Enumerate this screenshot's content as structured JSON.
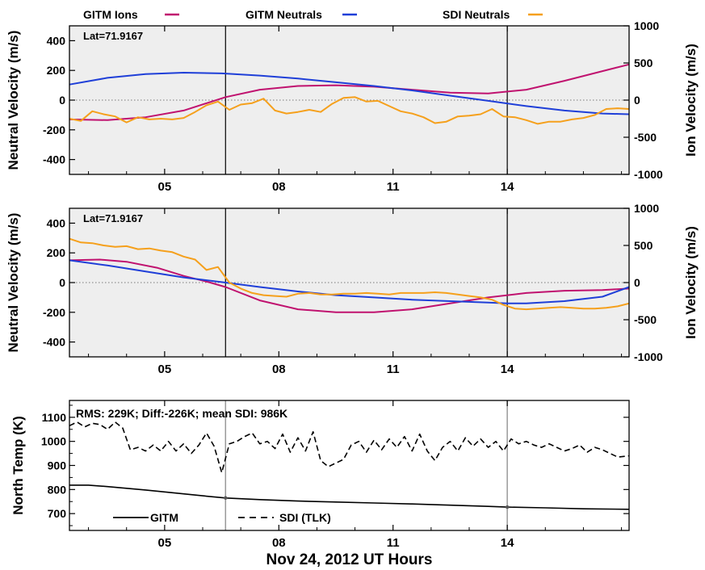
{
  "legend": {
    "ions": "GITM Ions",
    "gitm_neutrals": "GITM Neutrals",
    "sdi_neutrals": "SDI Neutrals"
  },
  "colors": {
    "ions": "#c0126f",
    "gitm_neutrals": "#1f3fd8",
    "sdi_neutrals": "#f5a01c",
    "panel_bg": "#eeeeee"
  },
  "chart_data": [
    {
      "type": "line",
      "panel_label": "Lat=71.9167",
      "ylabel_left": "Neutral Velocity (m/s)",
      "ylabel_right": "Ion Velocity (m/s)",
      "xlim": [
        2.5,
        17.2
      ],
      "ylim_left": [
        -500,
        500
      ],
      "ylim_right": [
        -1000,
        1000
      ],
      "xticks": [
        "05",
        "08",
        "11",
        "14"
      ],
      "xtick_values": [
        5,
        8,
        11,
        14
      ],
      "yticks_left": [
        "400",
        "200",
        "0",
        "-200",
        "-400"
      ],
      "yticks_left_values": [
        400,
        200,
        0,
        -200,
        -400
      ],
      "yticks_right": [
        "1000",
        "500",
        "0",
        "-500",
        "-1000"
      ],
      "yticks_right_values": [
        1000,
        500,
        0,
        -500,
        -1000
      ],
      "vlines": [
        6.6,
        14.0
      ],
      "series": [
        {
          "name": "GITM Ions",
          "axis": "right",
          "color_key": "ions",
          "x": [
            2.5,
            3.5,
            4.5,
            5.5,
            6.6,
            7.5,
            8.5,
            9.5,
            10.5,
            11.5,
            12.5,
            13.5,
            14.5,
            15.5,
            16.5,
            17.2
          ],
          "y": [
            -260,
            -270,
            -230,
            -140,
            40,
            140,
            190,
            200,
            180,
            140,
            100,
            90,
            140,
            260,
            390,
            480
          ]
        },
        {
          "name": "GITM Neutrals",
          "axis": "left",
          "color_key": "gitm_neutrals",
          "x": [
            2.5,
            3.5,
            4.5,
            5.5,
            6.5,
            7.5,
            8.5,
            9.5,
            10.5,
            11.5,
            12.5,
            13.5,
            14.5,
            15.5,
            16.5,
            17.2
          ],
          "y": [
            105,
            150,
            175,
            185,
            180,
            165,
            145,
            120,
            95,
            65,
            30,
            -5,
            -40,
            -70,
            -90,
            -95
          ]
        },
        {
          "name": "SDI Neutrals",
          "axis": "left",
          "color_key": "sdi_neutrals",
          "x": [
            2.5,
            2.8,
            3.1,
            3.4,
            3.7,
            4.0,
            4.3,
            4.6,
            4.9,
            5.2,
            5.5,
            5.8,
            6.1,
            6.4,
            6.7,
            7.0,
            7.3,
            7.6,
            7.9,
            8.2,
            8.5,
            8.8,
            9.1,
            9.4,
            9.7,
            10.0,
            10.3,
            10.6,
            10.9,
            11.2,
            11.5,
            11.8,
            12.1,
            12.4,
            12.7,
            13.0,
            13.3,
            13.6,
            13.9,
            14.2,
            14.5,
            14.8,
            15.1,
            15.4,
            15.7,
            16.0,
            16.3,
            16.6,
            16.9,
            17.2
          ],
          "y": [
            -125,
            -140,
            -75,
            -95,
            -110,
            -150,
            -115,
            -130,
            -125,
            -130,
            -120,
            -80,
            -35,
            -10,
            -65,
            -30,
            -20,
            10,
            -70,
            -90,
            -80,
            -65,
            -80,
            -25,
            15,
            20,
            -10,
            -5,
            -40,
            -75,
            -90,
            -115,
            -155,
            -145,
            -110,
            -105,
            -95,
            -60,
            -110,
            -115,
            -135,
            -160,
            -145,
            -145,
            -130,
            -120,
            -100,
            -60,
            -55,
            -60
          ]
        }
      ]
    },
    {
      "type": "line",
      "panel_label": "Lat=71.9167",
      "ylabel_left": "Neutral Velocity (m/s)",
      "ylabel_right": "Ion Velocity (m/s)",
      "xlim": [
        2.5,
        17.2
      ],
      "ylim_left": [
        -500,
        500
      ],
      "ylim_right": [
        -1000,
        1000
      ],
      "xticks": [
        "05",
        "08",
        "11",
        "14"
      ],
      "xtick_values": [
        5,
        8,
        11,
        14
      ],
      "yticks_left": [
        "400",
        "200",
        "0",
        "-200",
        "-400"
      ],
      "yticks_left_values": [
        400,
        200,
        0,
        -200,
        -400
      ],
      "yticks_right": [
        "1000",
        "500",
        "0",
        "-500",
        "-1000"
      ],
      "yticks_right_values": [
        1000,
        500,
        0,
        -500,
        -1000
      ],
      "vlines": [
        6.6,
        14.0
      ],
      "series": [
        {
          "name": "GITM Ions",
          "axis": "right",
          "color_key": "ions",
          "x": [
            2.5,
            3.3,
            4.0,
            4.8,
            5.5,
            6.2,
            6.6,
            7.5,
            8.5,
            9.5,
            10.5,
            11.5,
            12.5,
            13.5,
            14.5,
            15.5,
            16.5,
            17.2
          ],
          "y": [
            300,
            310,
            280,
            200,
            90,
            0,
            -60,
            -240,
            -360,
            -400,
            -400,
            -360,
            -280,
            -200,
            -140,
            -110,
            -100,
            -80
          ]
        },
        {
          "name": "GITM Neutrals",
          "axis": "left",
          "color_key": "gitm_neutrals",
          "x": [
            2.5,
            3.5,
            4.5,
            5.5,
            6.6,
            7.5,
            8.5,
            9.5,
            10.5,
            11.5,
            12.5,
            13.5,
            14.0,
            14.5,
            15.5,
            16.5,
            17.2
          ],
          "y": [
            150,
            115,
            75,
            35,
            0,
            -30,
            -60,
            -85,
            -100,
            -115,
            -125,
            -135,
            -140,
            -140,
            -125,
            -95,
            -30
          ]
        },
        {
          "name": "SDI Neutrals",
          "axis": "left",
          "color_key": "sdi_neutrals",
          "x": [
            2.5,
            2.8,
            3.1,
            3.4,
            3.7,
            4.0,
            4.3,
            4.6,
            4.9,
            5.2,
            5.5,
            5.8,
            6.1,
            6.4,
            6.7,
            7.0,
            7.3,
            7.6,
            7.9,
            8.2,
            8.5,
            8.8,
            9.1,
            9.4,
            9.7,
            10.0,
            10.3,
            10.6,
            10.9,
            11.2,
            11.5,
            11.8,
            12.1,
            12.4,
            12.7,
            13.0,
            13.3,
            13.6,
            13.9,
            14.2,
            14.5,
            14.8,
            15.1,
            15.4,
            15.7,
            16.0,
            16.3,
            16.6,
            16.9,
            17.2
          ],
          "y": [
            295,
            270,
            265,
            250,
            240,
            245,
            225,
            230,
            215,
            205,
            175,
            155,
            85,
            105,
            0,
            -40,
            -70,
            -85,
            -90,
            -95,
            -75,
            -70,
            -80,
            -80,
            -75,
            -75,
            -70,
            -75,
            -80,
            -70,
            -70,
            -70,
            -65,
            -70,
            -80,
            -90,
            -100,
            -115,
            -150,
            -175,
            -180,
            -175,
            -170,
            -165,
            -170,
            -175,
            -175,
            -170,
            -160,
            -140
          ]
        }
      ]
    },
    {
      "type": "line",
      "stats_text": "RMS: 229K; Diff:-226K; mean SDI: 986K",
      "ylabel_left": "North Temp (K)",
      "xlabel": "Nov 24, 2012 UT Hours",
      "xlim": [
        2.5,
        17.2
      ],
      "ylim": [
        630,
        1170
      ],
      "xticks": [
        "05",
        "08",
        "11",
        "14"
      ],
      "xtick_values": [
        5,
        8,
        11,
        14
      ],
      "yticks": [
        "1100",
        "1000",
        "900",
        "800",
        "700"
      ],
      "ytick_values": [
        1100,
        1000,
        900,
        800,
        700
      ],
      "vlines": [
        6.6,
        14.0
      ],
      "legend_gitm": "GITM",
      "legend_sdi": "SDI (TLK)",
      "series": [
        {
          "name": "GITM",
          "style": "solid",
          "x": [
            2.5,
            3.0,
            3.5,
            4.0,
            4.5,
            5.0,
            5.5,
            6.0,
            6.6,
            7.5,
            8.5,
            9.5,
            10.5,
            11.5,
            12.5,
            13.5,
            14.0,
            15.0,
            16.0,
            17.2
          ],
          "y": [
            818,
            818,
            812,
            805,
            798,
            790,
            782,
            774,
            765,
            758,
            752,
            748,
            744,
            740,
            735,
            730,
            727,
            724,
            720,
            718
          ]
        },
        {
          "name": "SDI (TLK)",
          "style": "dashed",
          "x": [
            2.5,
            2.7,
            2.9,
            3.1,
            3.3,
            3.5,
            3.7,
            3.9,
            4.1,
            4.3,
            4.5,
            4.7,
            4.9,
            5.1,
            5.3,
            5.5,
            5.7,
            5.9,
            6.1,
            6.3,
            6.5,
            6.7,
            6.9,
            7.1,
            7.3,
            7.5,
            7.7,
            7.9,
            8.1,
            8.3,
            8.5,
            8.7,
            8.9,
            9.1,
            9.3,
            9.5,
            9.7,
            9.9,
            10.1,
            10.3,
            10.5,
            10.7,
            10.9,
            11.1,
            11.3,
            11.5,
            11.7,
            11.9,
            12.1,
            12.3,
            12.5,
            12.7,
            12.9,
            13.1,
            13.3,
            13.5,
            13.7,
            13.9,
            14.1,
            14.3,
            14.5,
            14.7,
            14.9,
            15.1,
            15.3,
            15.5,
            15.7,
            15.9,
            16.1,
            16.3,
            16.5,
            16.7,
            16.9,
            17.2
          ],
          "y": [
            1065,
            1080,
            1060,
            1075,
            1070,
            1050,
            1080,
            1055,
            965,
            975,
            960,
            985,
            960,
            1000,
            960,
            990,
            950,
            985,
            1035,
            980,
            870,
            990,
            1000,
            1020,
            1035,
            990,
            1000,
            970,
            1030,
            955,
            1015,
            960,
            1040,
            920,
            895,
            910,
            925,
            985,
            1000,
            955,
            1005,
            965,
            1010,
            975,
            1020,
            960,
            1030,
            960,
            920,
            975,
            1000,
            960,
            1015,
            980,
            1010,
            975,
            1000,
            960,
            1010,
            990,
            1000,
            985,
            975,
            990,
            975,
            960,
            970,
            985,
            955,
            975,
            965,
            950,
            935,
            940
          ]
        }
      ]
    }
  ]
}
